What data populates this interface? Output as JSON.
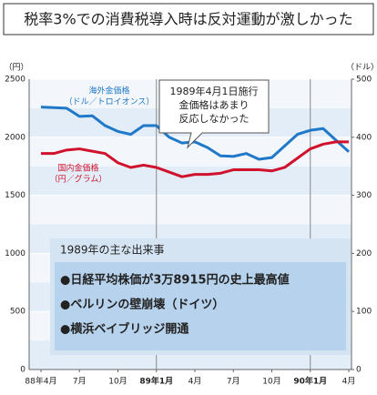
{
  "chart_data": {
    "type": "line",
    "title": "税率3%での消費税導入時は反対運動が激しかった",
    "y_unit": "（円）",
    "y2_unit": "（ドル）",
    "categories": [
      "88年4月",
      null,
      null,
      "7月",
      null,
      null,
      "10月",
      null,
      null,
      "89年1月",
      null,
      null,
      "4月",
      null,
      null,
      "7月",
      null,
      null,
      "10月",
      null,
      null,
      "90年1月",
      null,
      null,
      "4月"
    ],
    "series": [
      {
        "name": "海外金価格",
        "unit": "（ドル／トロイオンス）",
        "color": "#1f78c8",
        "axis": "y2",
        "values": [
          452,
          451,
          450,
          436,
          437,
          420,
          410,
          405,
          420,
          420,
          400,
          390,
          392,
          382,
          368,
          367,
          372,
          362,
          365,
          385,
          405,
          412,
          415,
          395,
          375
        ]
      },
      {
        "name": "国内金価格",
        "unit": "（円／グラム）",
        "color": "#d0122c",
        "axis": "y",
        "values": [
          1860,
          1860,
          1890,
          1900,
          1880,
          1860,
          1780,
          1740,
          1760,
          1740,
          1700,
          1660,
          1680,
          1680,
          1690,
          1720,
          1720,
          1720,
          1710,
          1740,
          1820,
          1900,
          1940,
          1960,
          1960
        ]
      }
    ],
    "ylim": [
      0,
      2500
    ],
    "yticks": [
      0,
      500,
      1000,
      1500,
      2000,
      2500
    ],
    "y2lim": [
      0,
      500
    ],
    "y2ticks": [
      0,
      100,
      200,
      300,
      400,
      500
    ],
    "callout": [
      "1989年4月1日施行",
      "金価格はあまり",
      "反応しなかった"
    ],
    "events": {
      "title": "1989年の主な出来事",
      "items": [
        "●日経平均株価が3万8915円の史上最高値",
        "●ベルリンの壁崩壊（ドイツ）",
        "●横浜ベイブリッジ開通"
      ]
    }
  }
}
